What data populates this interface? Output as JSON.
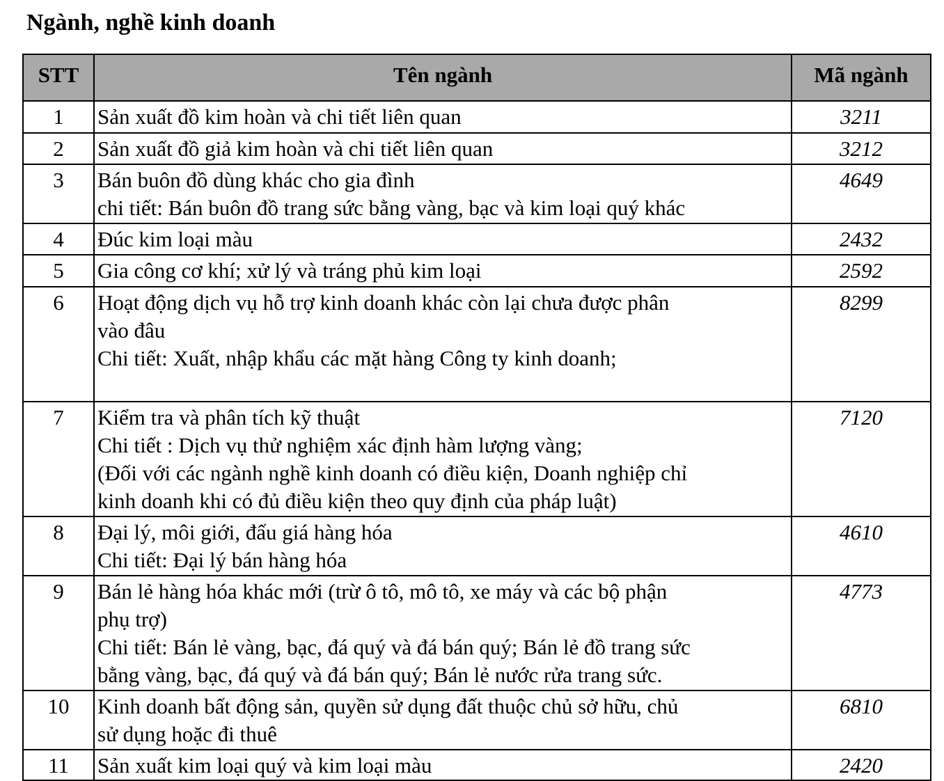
{
  "title": "Ngành, nghề kinh doanh",
  "headers": {
    "stt": "STT",
    "name": "Tên ngành",
    "code": "Mã ngành"
  },
  "rows": [
    {
      "stt": "1",
      "lines": [
        "Sản xuất đồ kim hoàn và chi tiết liên quan"
      ],
      "code": "3211"
    },
    {
      "stt": "2",
      "lines": [
        "Sản xuất đồ giả kim hoàn và chi tiết liên quan"
      ],
      "code": "3212"
    },
    {
      "stt": "3",
      "lines": [
        "Bán buôn đồ dùng khác cho gia đình",
        "chi tiết: Bán buôn đồ trang sức bằng vàng, bạc và kim loại quý khác"
      ],
      "code": "4649"
    },
    {
      "stt": "4",
      "lines": [
        "Đúc kim loại màu"
      ],
      "code": "2432"
    },
    {
      "stt": "5",
      "lines": [
        "Gia công cơ khí; xử lý và tráng phủ kim loại"
      ],
      "code": "2592"
    },
    {
      "stt": "6",
      "lines": [
        "Hoạt động dịch vụ hỗ trợ kinh doanh khác còn lại chưa được phân",
        "vào đâu",
        "Chi tiết: Xuất, nhập khẩu các mặt hàng Công ty kinh doanh;"
      ],
      "code": "8299"
    },
    {
      "stt": "7",
      "lines": [
        "Kiểm tra và phân tích kỹ thuật",
        "Chi tiết : Dịch vụ thử nghiệm xác định hàm lượng vàng;",
        "(Đối với các ngành nghề kinh doanh có điều kiện, Doanh nghiệp chỉ",
        "kinh doanh khi có đủ điều kiện theo quy định của pháp luật)"
      ],
      "code": "7120"
    },
    {
      "stt": "8",
      "lines": [
        "Đại lý, môi giới, đấu giá hàng hóa",
        "Chi tiết: Đại lý bán hàng hóa"
      ],
      "code": "4610"
    },
    {
      "stt": "9",
      "lines": [
        "Bán lẻ hàng hóa khác mới (trừ ô tô, mô tô, xe máy và các bộ phận",
        "phụ trợ)",
        "Chi tiết: Bán lẻ vàng, bạc, đá quý và đá bán quý; Bán lẻ đồ trang sức",
        "bằng vàng, bạc, đá quý và đá bán quý; Bán lẻ nước rửa trang sức."
      ],
      "code": "4773"
    },
    {
      "stt": "10",
      "lines": [
        "Kinh doanh bất động sản, quyền sử dụng đất thuộc chủ sở hữu, chủ",
        "sử dụng hoặc đi thuê"
      ],
      "code": "6810"
    },
    {
      "stt": "11",
      "lines": [
        "Sản xuất kim loại quý và kim loại màu"
      ],
      "code": "2420"
    }
  ]
}
